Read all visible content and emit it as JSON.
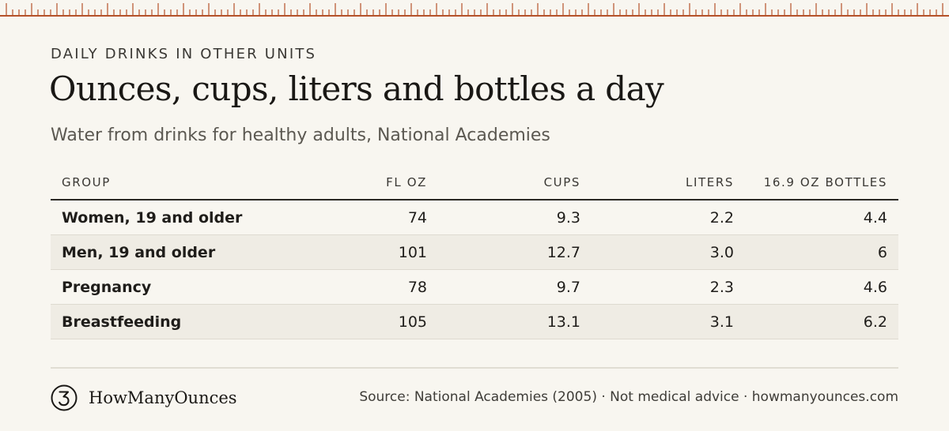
{
  "header": {
    "eyebrow": "DAILY DRINKS IN OTHER UNITS",
    "title": "Ounces, cups, liters and bottles a day",
    "subtitle": "Water from drinks for healthy adults, National Academies"
  },
  "table": {
    "columns": [
      "GROUP",
      "FL OZ",
      "CUPS",
      "LITERS",
      "16.9 OZ BOTTLES"
    ],
    "rows": [
      {
        "group": "Women, 19 and older",
        "fl_oz": "74",
        "cups": "9.3",
        "liters": "2.2",
        "bottles": "4.4"
      },
      {
        "group": "Men, 19 and older",
        "fl_oz": "101",
        "cups": "12.7",
        "liters": "3.0",
        "bottles": "6"
      },
      {
        "group": "Pregnancy",
        "fl_oz": "78",
        "cups": "9.7",
        "liters": "2.3",
        "bottles": "4.6"
      },
      {
        "group": "Breastfeeding",
        "fl_oz": "105",
        "cups": "13.1",
        "liters": "3.1",
        "bottles": "6.2"
      }
    ]
  },
  "footer": {
    "brand_name": "HowManyOunces",
    "brand_icon": "numeral-3-circle-icon",
    "source": "Source: National Academies (2005) · Not medical advice · howmanyounces.com"
  },
  "colors": {
    "background": "#f8f6f0",
    "ruler_accent": "#b5522a",
    "text": "#1c1a17",
    "muted": "#5b5851",
    "row_alt": "#efece4"
  }
}
